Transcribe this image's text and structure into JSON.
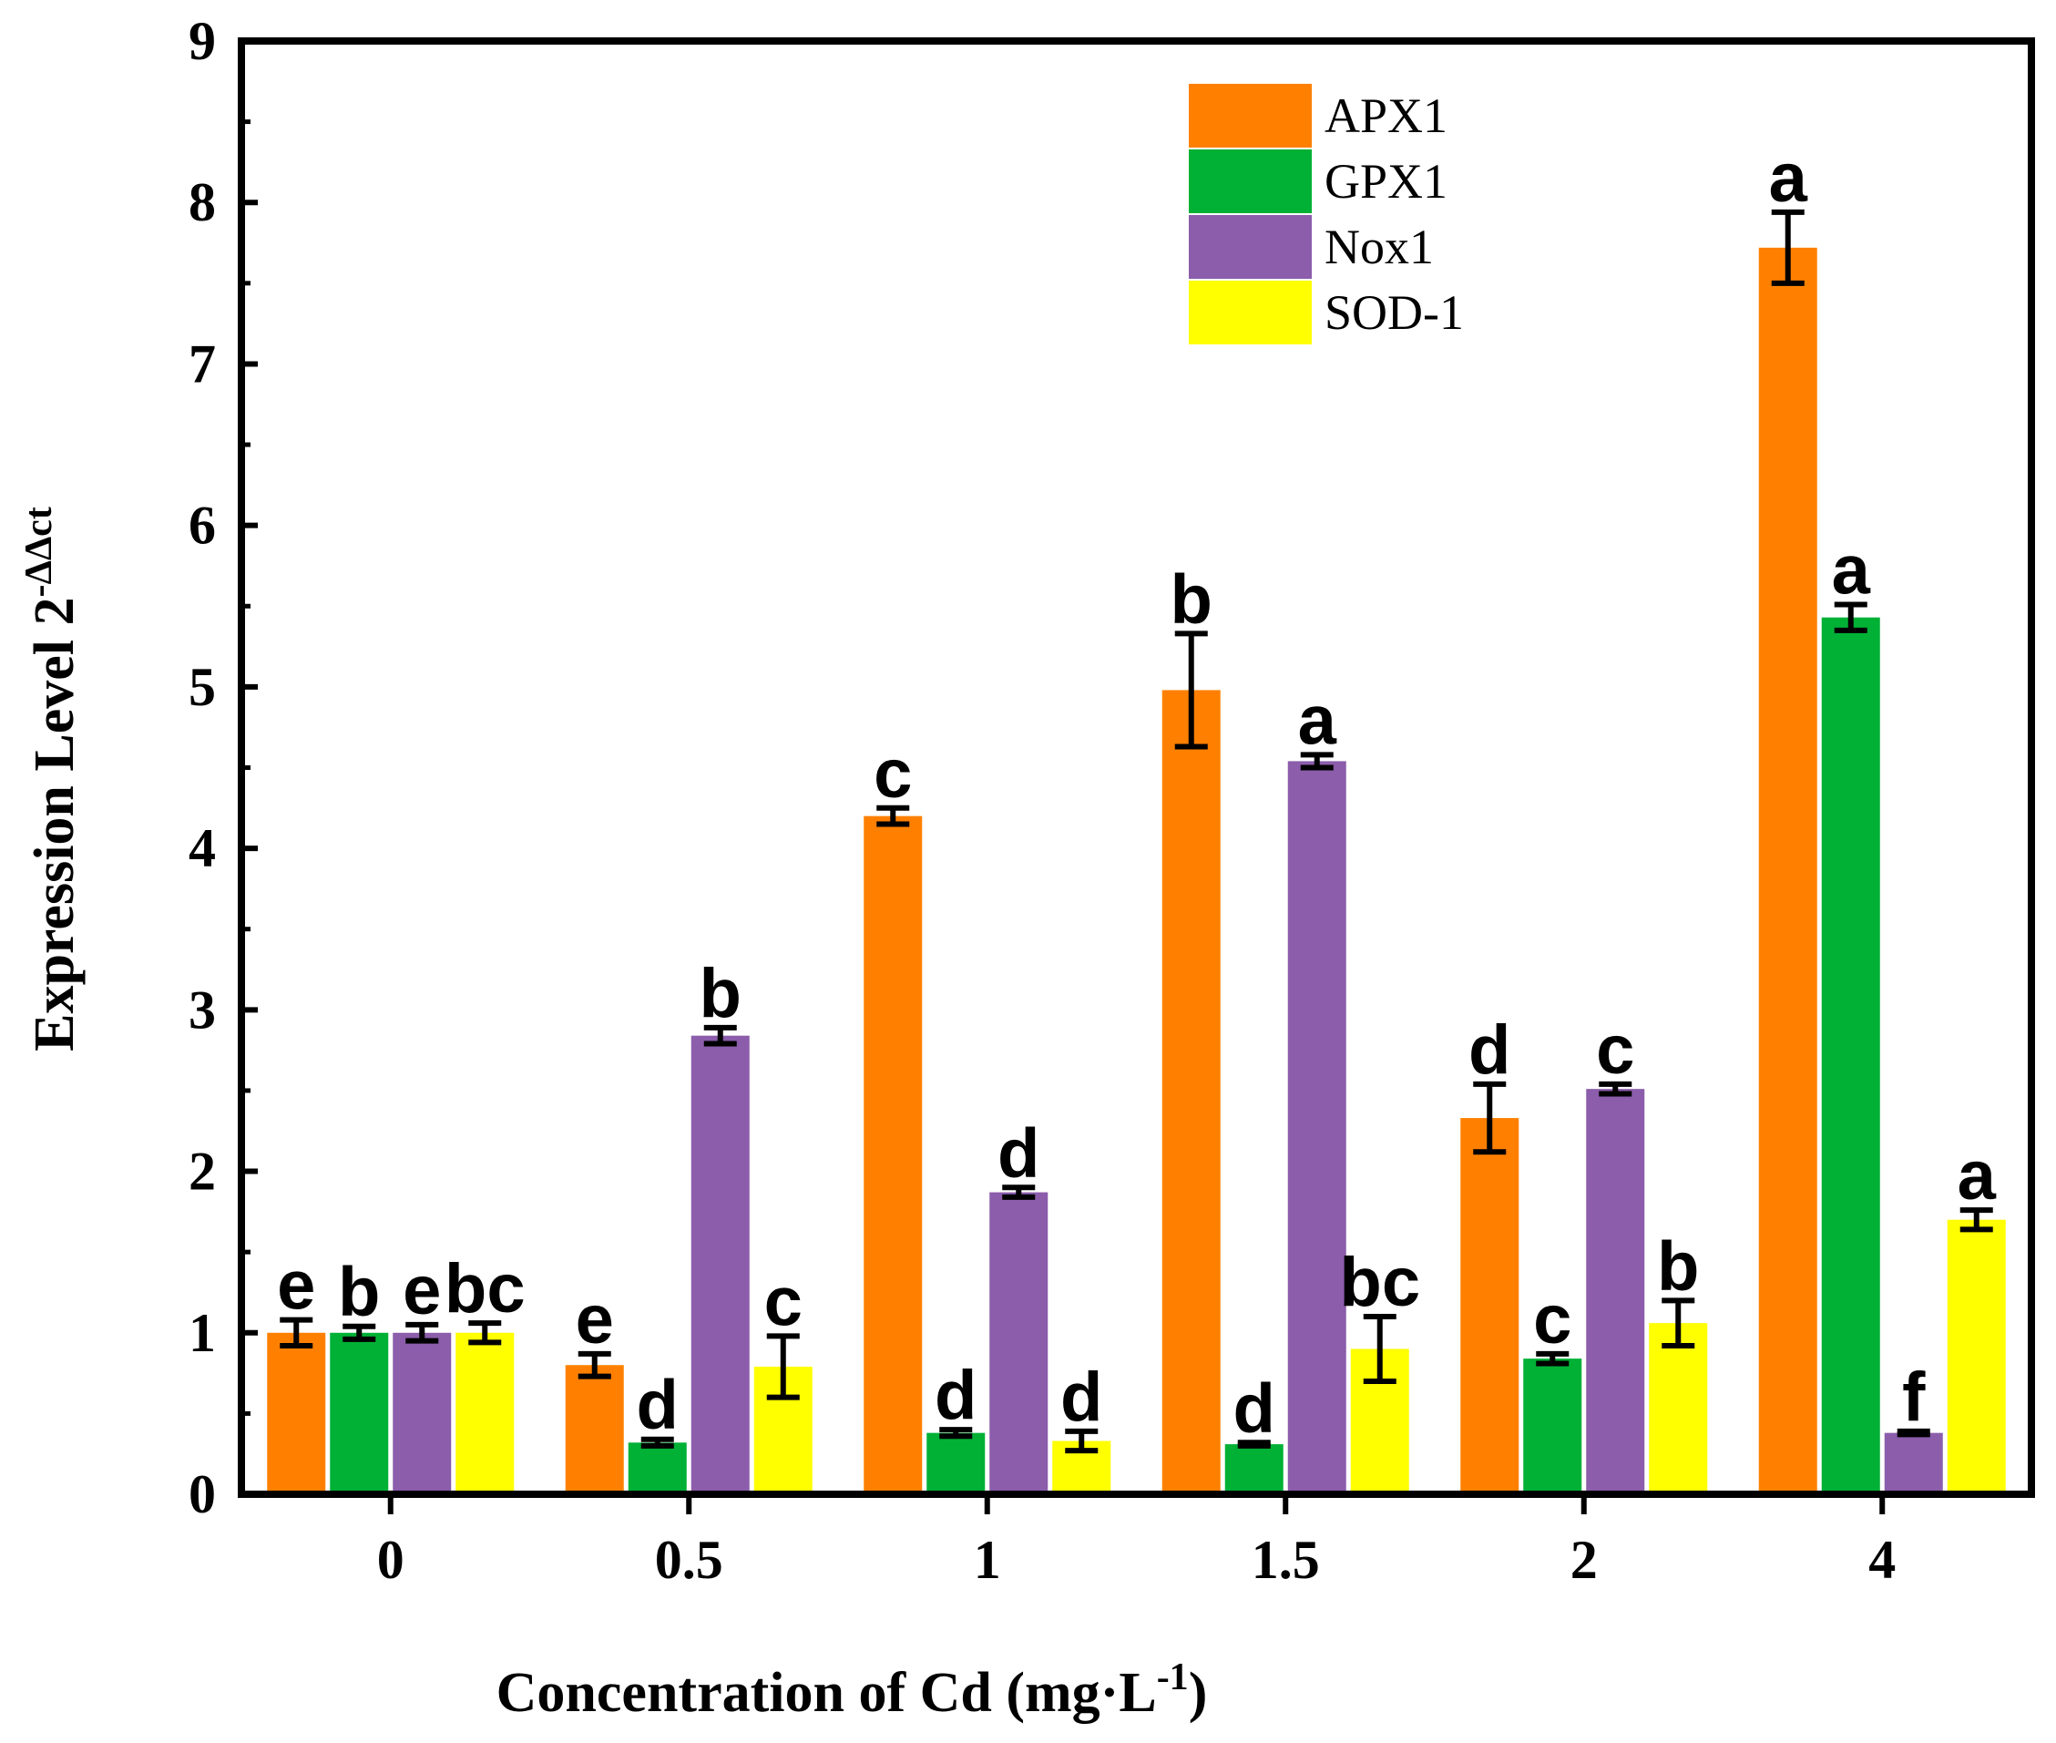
{
  "chart_data": {
    "type": "bar",
    "title": "",
    "xlabel": "Concentration of Cd  (mg·L",
    "xlabel_sup": "-1",
    "xlabel_tail": ")",
    "ylabel": "Expression Level 2",
    "ylabel_sup": "-ΔΔct",
    "ylim": [
      0,
      9
    ],
    "yticks": [
      "0",
      "1",
      "2",
      "3",
      "4",
      "5",
      "6",
      "7",
      "8",
      "9"
    ],
    "categories": [
      "0",
      "0.5",
      "1",
      "1.5",
      "2",
      "4"
    ],
    "legend_position": "top-center",
    "series": [
      {
        "name": "APX1",
        "color": "#FF8000",
        "values": [
          1.0,
          0.8,
          4.2,
          4.98,
          2.33,
          7.72
        ],
        "errors": [
          0.08,
          0.07,
          0.05,
          0.35,
          0.21,
          0.22
        ],
        "letters": [
          "e",
          "e",
          "c",
          "b",
          "d",
          "a"
        ]
      },
      {
        "name": "GPX1",
        "color": "#00B136",
        "values": [
          1.0,
          0.32,
          0.38,
          0.31,
          0.84,
          5.43
        ],
        "errors": [
          0.04,
          0.02,
          0.02,
          0.01,
          0.03,
          0.08
        ],
        "letters": [
          "b",
          "d",
          "d",
          "d",
          "c",
          "a"
        ]
      },
      {
        "name": "Nox1",
        "color": "#8B5DAB",
        "values": [
          1.0,
          2.84,
          1.87,
          4.54,
          2.51,
          0.38
        ],
        "errors": [
          0.05,
          0.05,
          0.03,
          0.04,
          0.03,
          0.01
        ],
        "letters": [
          "e",
          "b",
          "d",
          "a",
          "c",
          "f"
        ]
      },
      {
        "name": "SOD-1",
        "color": "#FFFF00",
        "values": [
          1.0,
          0.79,
          0.33,
          0.9,
          1.06,
          1.7
        ],
        "errors": [
          0.06,
          0.19,
          0.06,
          0.2,
          0.14,
          0.06
        ],
        "letters": [
          "bc",
          "c",
          "d",
          "bc",
          "b",
          "a"
        ]
      }
    ]
  }
}
